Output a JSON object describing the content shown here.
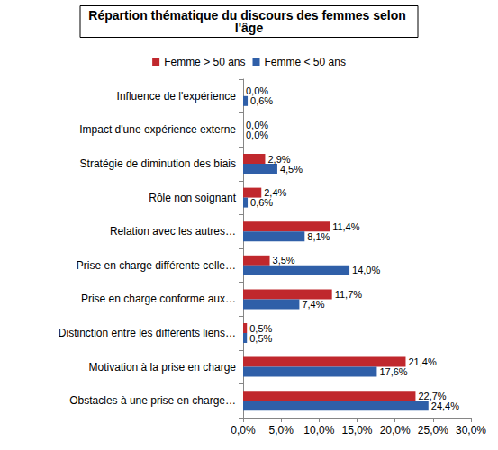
{
  "chart_data": {
    "type": "bar",
    "orientation": "horizontal",
    "title": "Répartion thématique du discours des femmes selon l'âge",
    "categories": [
      "Influence de l'expérience",
      "Impact d'une expérience externe",
      "Stratégie de diminution des biais",
      "Rôle non soignant",
      "Relation avec les autres…",
      "Prise en charge différente celle…",
      "Prise en charge conforme aux…",
      "Distinction entre les différents liens…",
      "Motivation à la prise en charge",
      "Obstacles à une prise en charge…"
    ],
    "series": [
      {
        "name": "Femme > 50 ans",
        "color": "#c0282d",
        "values": [
          0.0,
          0.0,
          2.9,
          2.4,
          11.4,
          3.5,
          11.7,
          0.5,
          21.4,
          22.7
        ],
        "value_labels": [
          "0,0%",
          "0,0%",
          "2,9%",
          "2,4%",
          "11,4%",
          "3,5%",
          "11,7%",
          "0,5%",
          "21,4%",
          "22,7%"
        ]
      },
      {
        "name": "Femme < 50 ans",
        "color": "#2f5fa8",
        "values": [
          0.6,
          0.0,
          4.5,
          0.6,
          8.1,
          14.0,
          7.4,
          0.5,
          17.6,
          24.4
        ],
        "value_labels": [
          "0,6%",
          "0,0%",
          "4,5%",
          "0,6%",
          "8,1%",
          "14,0%",
          "7,4%",
          "0,5%",
          "17,6%",
          "24,4%"
        ]
      }
    ],
    "xlim": [
      0,
      30
    ],
    "xticks": [
      {
        "value": 0,
        "label": "0,0%"
      },
      {
        "value": 5,
        "label": "5,0%"
      },
      {
        "value": 10,
        "label": "10,0%"
      },
      {
        "value": 15,
        "label": "15,0%"
      },
      {
        "value": 20,
        "label": "20,0%"
      },
      {
        "value": 25,
        "label": "25,0%"
      },
      {
        "value": 30,
        "label": "30,0%"
      }
    ],
    "grid": false,
    "legend": "top",
    "data_labels": true
  }
}
